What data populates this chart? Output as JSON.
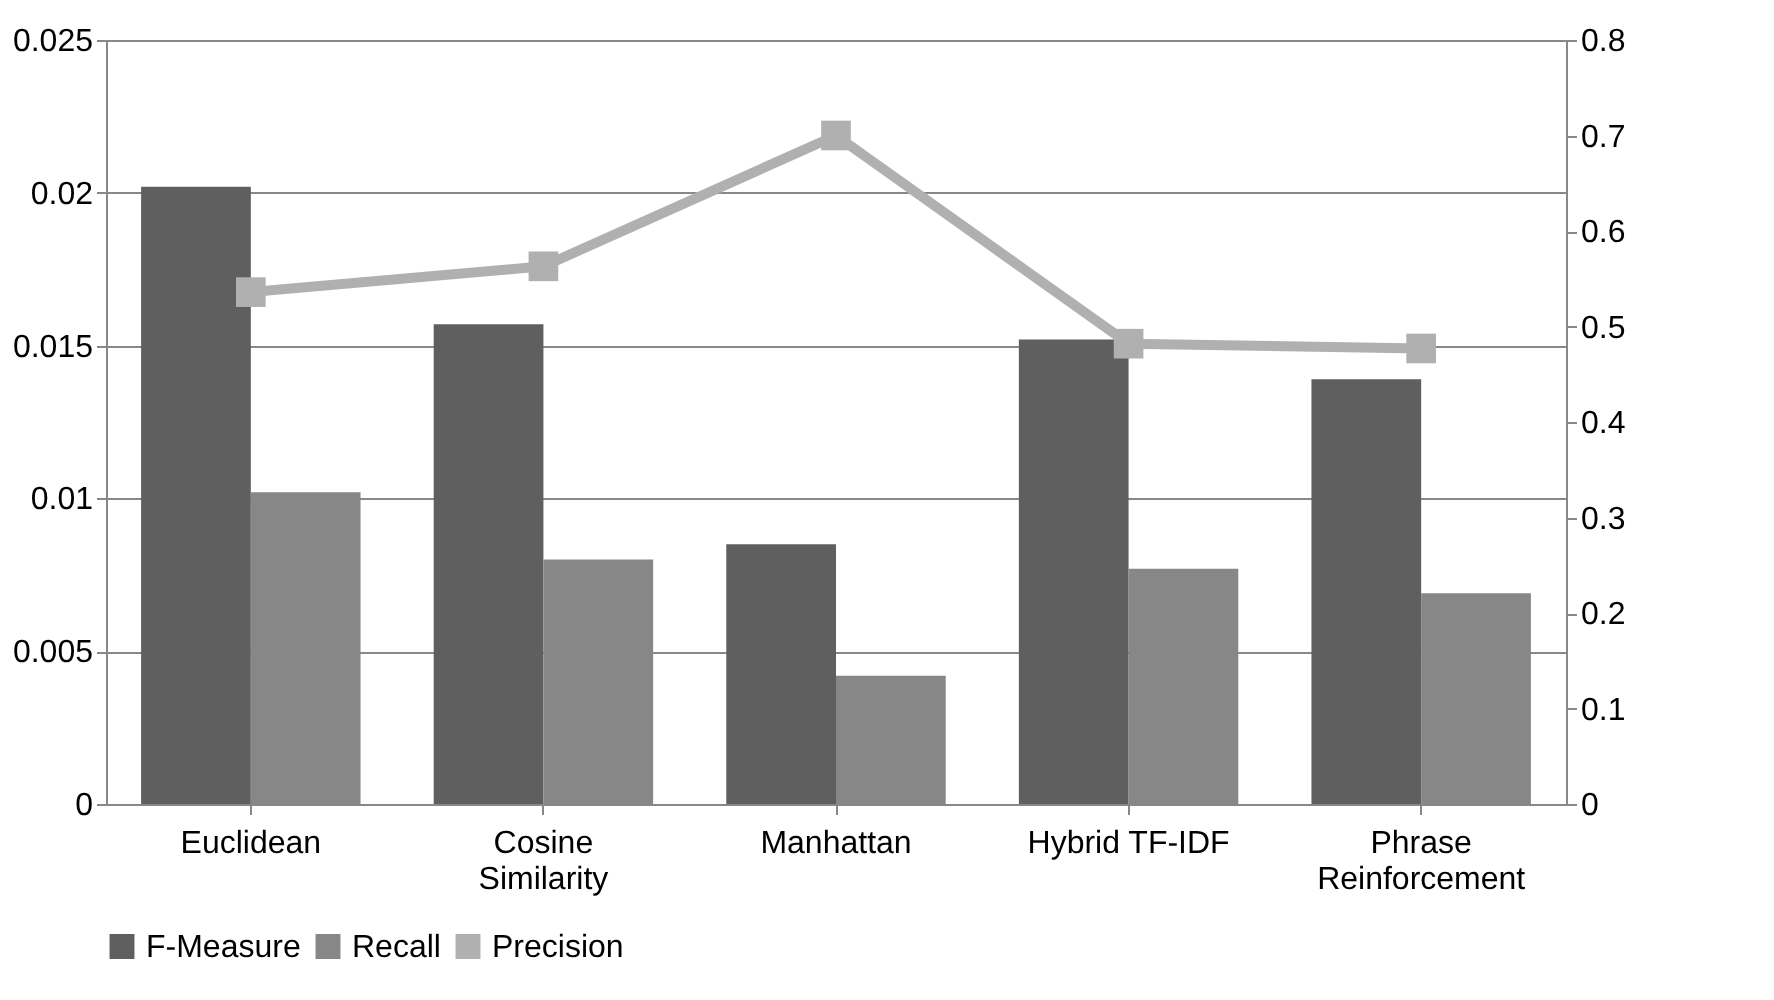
{
  "chart_data": {
    "type": "bar",
    "categories": [
      "Euclidean",
      "Cosine Similarity",
      "Manhattan",
      "Hybrid TF-IDF",
      "Phrase Reinforcement"
    ],
    "series": [
      {
        "name": "F-Measure",
        "color": "#5f5f5f",
        "values": [
          0.0202,
          0.0157,
          0.0085,
          0.0152,
          0.0139
        ]
      },
      {
        "name": "Recall",
        "color": "#878787",
        "values": [
          0.0102,
          0.008,
          0.0042,
          0.0077,
          0.0069
        ]
      },
      {
        "name": "Precision",
        "color": "#b0b0b0",
        "type": "line",
        "axis": "y2",
        "marker": "square",
        "values": [
          0.536,
          0.563,
          0.7,
          0.482,
          0.477
        ]
      }
    ],
    "ylim": [
      0,
      0.025
    ],
    "yticks": [
      0,
      0.005,
      0.01,
      0.015,
      0.02,
      0.025
    ],
    "y2lim": [
      0,
      0.8
    ],
    "y2ticks": [
      0,
      0.1,
      0.2,
      0.3,
      0.4,
      0.5,
      0.6,
      0.7,
      0.8
    ],
    "grid": "y",
    "legend": "bottom"
  }
}
